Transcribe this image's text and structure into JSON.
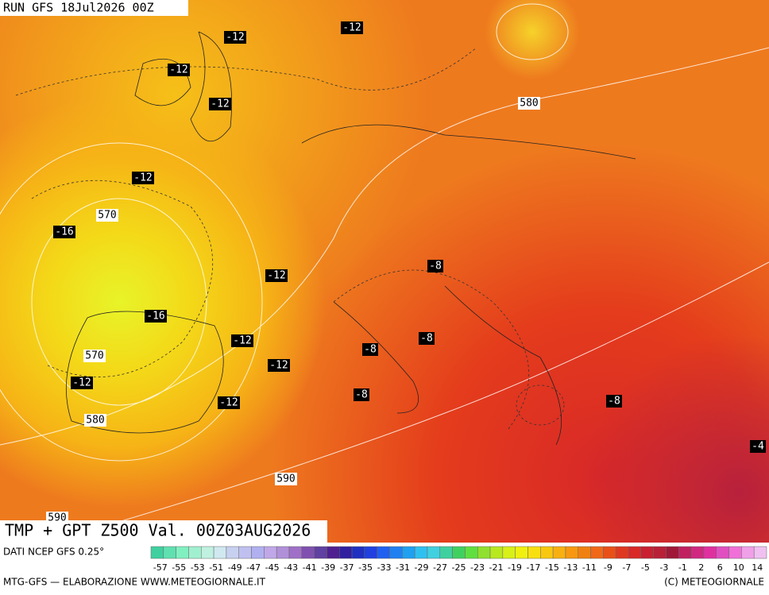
{
  "header": {
    "run": "RUN GFS 18Jul2026 00Z"
  },
  "map": {
    "title": "TMP + GPT Z500 Val. 00Z03AUG2026",
    "contour_labels": [
      "-12",
      "-12",
      "-12",
      "-12",
      "-12",
      "570",
      "-16",
      "-12",
      "-8",
      "-16",
      "-12",
      "-8",
      "-8",
      "570",
      "-12",
      "-12",
      "-8",
      "-12",
      "-8",
      "580",
      "-4",
      "590",
      "590",
      "580"
    ]
  },
  "legend": {
    "source": "DATI NCEP GFS 0.25°",
    "labels": [
      "-57",
      "-55",
      "-53",
      "-51",
      "-49",
      "-47",
      "-45",
      "-43",
      "-41",
      "-39",
      "-37",
      "-35",
      "-33",
      "-31",
      "-29",
      "-27",
      "-25",
      "-23",
      "-21",
      "-19",
      "-17",
      "-15",
      "-13",
      "-11",
      "-9",
      "-7",
      "-5",
      "-3",
      "-1",
      "2",
      "6",
      "10",
      "14"
    ]
  },
  "footer": {
    "left": "MTG-GFS — ELABORAZIONE WWW.METEOGIORNALE.IT",
    "right": "(C) METEOGIORNALE"
  }
}
